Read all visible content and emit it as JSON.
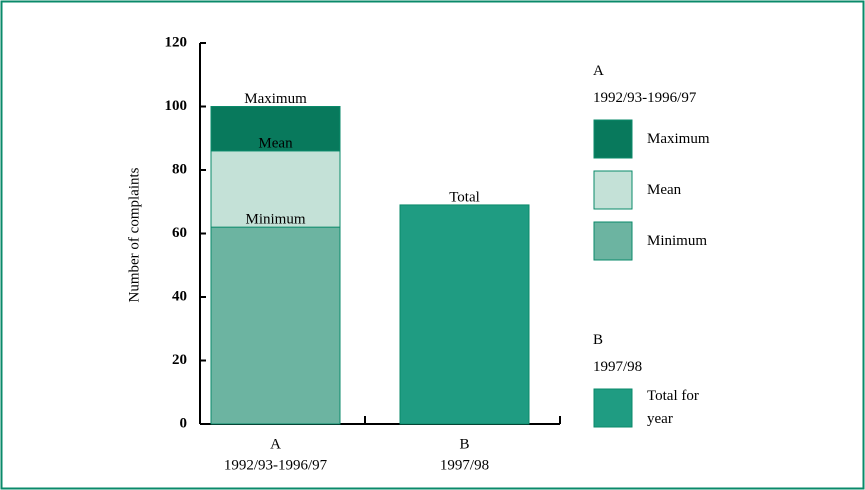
{
  "chart_data": {
    "type": "bar",
    "y_label": "Number of complaints",
    "categories": [
      "A",
      "B"
    ],
    "category_periods": [
      "1992/93-1996/97",
      "1997/98"
    ],
    "series": [
      {
        "name": "Maximum",
        "color": "#08795c",
        "values": [
          100,
          null
        ]
      },
      {
        "name": "Mean",
        "color": "#c4e1d7",
        "values": [
          86,
          null
        ]
      },
      {
        "name": "Minimum",
        "color": "#6cb4a1",
        "values": [
          62,
          null
        ]
      },
      {
        "name": "Total for year",
        "bar_label": "Total",
        "color": "#1f9c82",
        "values": [
          null,
          69
        ]
      }
    ],
    "ylim": [
      0,
      120
    ],
    "yticks": [
      0,
      20,
      40,
      60,
      80,
      100,
      120
    ]
  }
}
